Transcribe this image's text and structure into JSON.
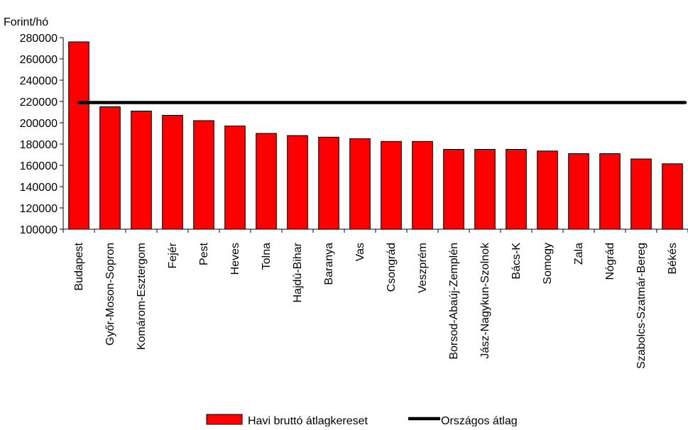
{
  "chart_data": {
    "type": "bar",
    "ylabel": "Forint/hó",
    "ylim": [
      100000,
      280000
    ],
    "yticks": [
      100000,
      120000,
      140000,
      160000,
      180000,
      200000,
      220000,
      240000,
      260000,
      280000
    ],
    "grid": false,
    "legend_position": "bottom-center",
    "categories": [
      "Budapest",
      "Győr-Moson-Sopron",
      "Komárom-Esztergom",
      "Fejér",
      "Pest",
      "Heves",
      "Tolna",
      "Hajdú-Bihar",
      "Baranya",
      "Vas",
      "Csongrád",
      "Veszprém",
      "Borsod-Abaúj-Zemplén",
      "Jász-Nagykun-Szolnok",
      "Bács-K",
      "Somogy",
      "Zala",
      "Nógrád",
      "Szabolcs-Szatmár-Bereg",
      "Békés"
    ],
    "series": [
      {
        "name": "Havi bruttó átlagkereset",
        "kind": "bar",
        "color": "#ff0000",
        "values": [
          276000,
          215000,
          211000,
          207000,
          202000,
          197000,
          190000,
          188000,
          186500,
          185000,
          182500,
          182500,
          175000,
          175000,
          175000,
          173500,
          171000,
          171000,
          166000,
          161500
        ]
      },
      {
        "name": "Országos átlag",
        "kind": "line",
        "color": "#000000",
        "value": 219000
      }
    ]
  }
}
